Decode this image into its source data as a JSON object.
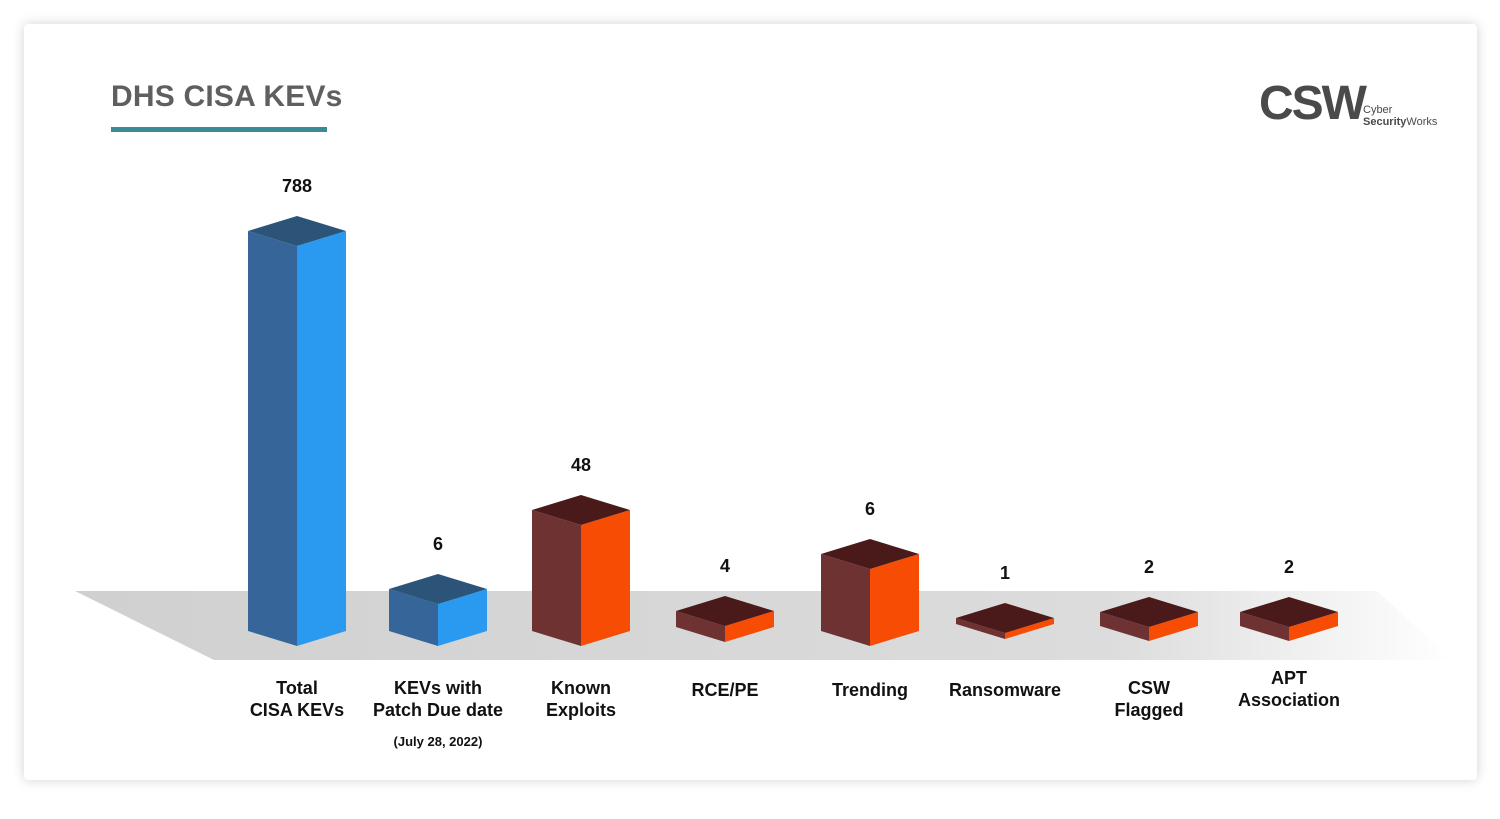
{
  "title": "DHS CISA KEVs",
  "logo": {
    "mark": "CSW",
    "line1": "Cyber",
    "line2_bold": "Security",
    "line2_rest": "Works"
  },
  "colors": {
    "blue_front": "#2a9af0",
    "blue_side": "#36659a",
    "blue_top": "#2c5478",
    "orange_front": "#f64c04",
    "orange_side": "#6e3233",
    "orange_top": "#4a1a1b",
    "floor": "#d3d3d3",
    "accent": "#3a8b96"
  },
  "chart_data": {
    "type": "bar",
    "title": "DHS CISA KEVs",
    "categories": [
      [
        "Total",
        "CISA KEVs"
      ],
      [
        "KEVs with",
        "Patch Due date"
      ],
      [
        "Known",
        "Exploits"
      ],
      [
        "RCE/PE"
      ],
      [
        "Trending"
      ],
      [
        "Ransomware"
      ],
      [
        "CSW",
        "Flagged"
      ],
      [
        "APT",
        "Association"
      ]
    ],
    "category_notes": [
      "",
      "(July 28, 2022)",
      "",
      "",
      "",
      "",
      "",
      ""
    ],
    "values": [
      788,
      6,
      48,
      4,
      6,
      1,
      2,
      2
    ],
    "value_labels": [
      "788",
      "6",
      "48",
      "4",
      "6",
      "1",
      "2",
      "2"
    ],
    "colors": [
      "blue",
      "blue",
      "orange",
      "orange",
      "orange",
      "orange",
      "orange",
      "orange"
    ]
  }
}
